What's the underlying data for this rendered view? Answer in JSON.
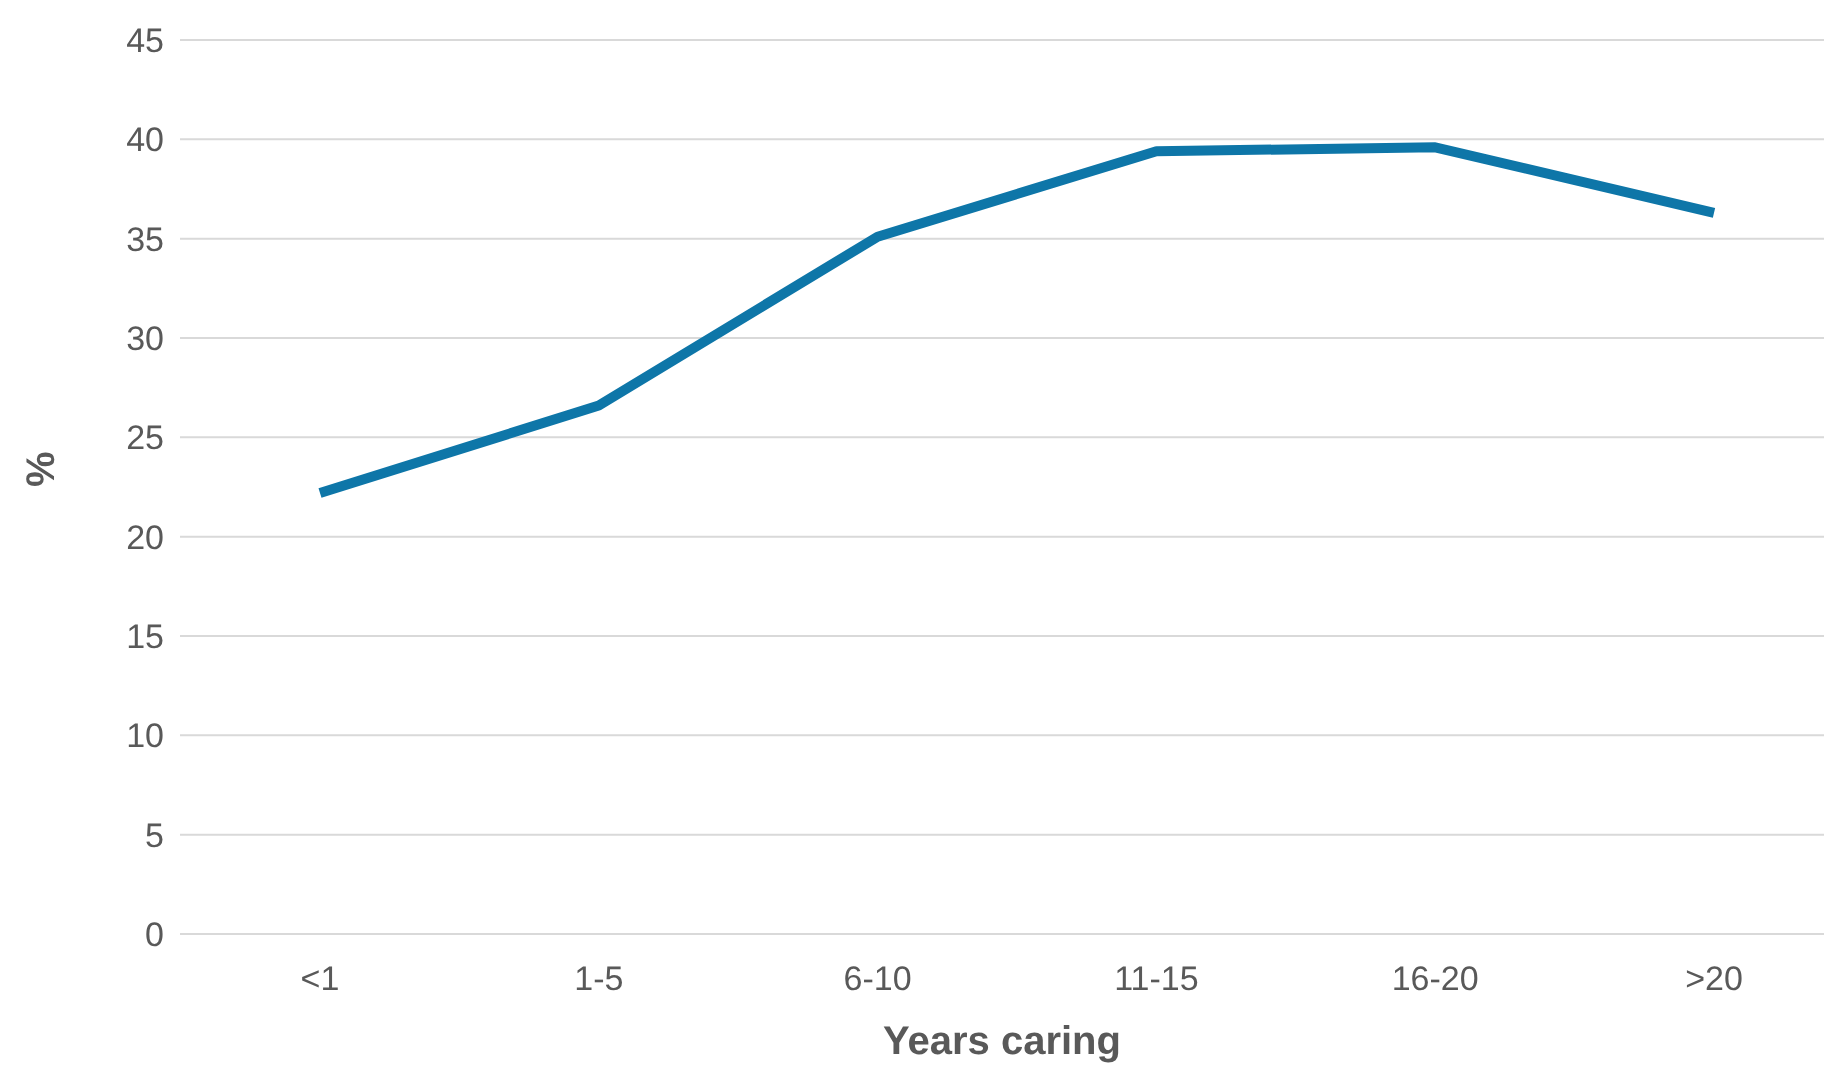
{
  "chart_data": {
    "type": "line",
    "xlabel": "Years caring",
    "ylabel": "%",
    "categories": [
      "<1",
      "1-5",
      "6-10",
      "11-15",
      "16-20",
      ">20"
    ],
    "series": [
      {
        "color": "#0e76a8",
        "values": [
          22.2,
          26.6,
          35.1,
          39.4,
          39.6,
          36.3
        ]
      }
    ],
    "ylim": [
      0,
      45
    ],
    "yticks": [
      0,
      5,
      10,
      15,
      20,
      25,
      30,
      35,
      40,
      45
    ],
    "grid": "y",
    "legend": false,
    "marker": "none",
    "line_style": "solid"
  }
}
